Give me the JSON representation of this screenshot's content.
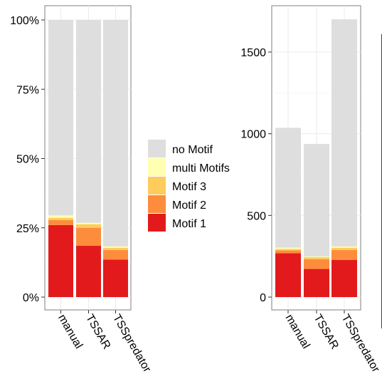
{
  "chart_data": [
    {
      "type": "bar",
      "stacked": true,
      "categories": [
        "manual",
        "TSSAR",
        "TSSpredator"
      ],
      "ylim": [
        0,
        100
      ],
      "yticks": [
        0,
        25,
        50,
        75,
        100
      ],
      "ytick_labels": [
        "0%",
        "25%",
        "50%",
        "75%",
        "100%"
      ],
      "grid": true,
      "series": [
        {
          "name": "Motif 1",
          "color": "#e31a1c",
          "values": [
            26,
            18.5,
            13.5
          ]
        },
        {
          "name": "Motif 2",
          "color": "#fd8d3c",
          "values": [
            1.8,
            6.5,
            3.5
          ]
        },
        {
          "name": "Motif 3",
          "color": "#fecc5c",
          "values": [
            0.8,
            1.3,
            0.8
          ]
        },
        {
          "name": "multi Motifs",
          "color": "#ffffb2",
          "values": [
            0.9,
            0.5,
            0.5
          ]
        },
        {
          "name": "no Motif",
          "color": "#dedede",
          "values": [
            70.5,
            73.2,
            81.7
          ]
        }
      ]
    },
    {
      "type": "bar",
      "stacked": true,
      "categories": [
        "manual",
        "TSSAR",
        "TSSpredator"
      ],
      "ylim": [
        0,
        1700
      ],
      "yticks": [
        0,
        500,
        1000,
        1500
      ],
      "ytick_labels": [
        "0",
        "500",
        "1000",
        "1500"
      ],
      "grid": true,
      "series": [
        {
          "name": "Motif 1",
          "color": "#e31a1c",
          "values": [
            268,
            172,
            228
          ]
        },
        {
          "name": "Motif 2",
          "color": "#fd8d3c",
          "values": [
            18,
            60,
            60
          ]
        },
        {
          "name": "Motif 3",
          "color": "#fecc5c",
          "values": [
            8,
            12,
            14
          ]
        },
        {
          "name": "multi Motifs",
          "color": "#ffffb2",
          "values": [
            9,
            5,
            8
          ]
        },
        {
          "name": "no Motif",
          "color": "#dedede",
          "values": [
            733,
            688,
            1390
          ]
        }
      ]
    }
  ],
  "legend": {
    "items": [
      {
        "label": "no Motif",
        "color": "#dedede"
      },
      {
        "label": "multi Motifs",
        "color": "#ffffb2"
      },
      {
        "label": "Motif 3",
        "color": "#fecc5c"
      },
      {
        "label": "Motif 2",
        "color": "#fd8d3c"
      },
      {
        "label": "Motif 1",
        "color": "#e31a1c"
      }
    ]
  }
}
